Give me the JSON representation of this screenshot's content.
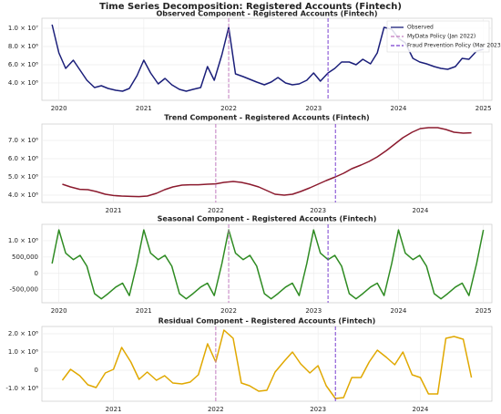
{
  "title": "Time Series Decomposition: Registered Accounts (Fintech)",
  "events": [
    {
      "x": 2022.0,
      "label": "MyData Policy (Jan 2022)",
      "color": "#c27bc0"
    },
    {
      "x": 2023.17,
      "label": "Fraud Prevention Policy (Mar 2023)",
      "color": "#7a3fd0"
    }
  ],
  "chart_data": [
    {
      "type": "line",
      "title": "Observed Component - Registered Accounts (Fintech)",
      "x": [
        2019.92,
        2020,
        2020.08,
        2020.17,
        2020.25,
        2020.33,
        2020.42,
        2020.5,
        2020.58,
        2020.67,
        2020.75,
        2020.83,
        2020.92,
        2021,
        2021.08,
        2021.17,
        2021.25,
        2021.33,
        2021.42,
        2021.5,
        2021.58,
        2021.67,
        2021.75,
        2021.83,
        2021.92,
        2022,
        2022.08,
        2022.17,
        2022.25,
        2022.33,
        2022.42,
        2022.5,
        2022.58,
        2022.67,
        2022.75,
        2022.83,
        2022.92,
        2023,
        2023.08,
        2023.17,
        2023.25,
        2023.33,
        2023.42,
        2023.5,
        2023.58,
        2023.67,
        2023.75,
        2023.83,
        2023.92,
        2024,
        2024.08,
        2024.17,
        2024.25,
        2024.33,
        2024.42,
        2024.5,
        2024.58,
        2024.67,
        2024.75,
        2024.83,
        2024.92,
        2025
      ],
      "series": [
        {
          "name": "Observed",
          "color": "#1b1f7a",
          "values": [
            10400000,
            7300000,
            5600000,
            6500000,
            5400000,
            4300000,
            3500000,
            3700000,
            3400000,
            3200000,
            3100000,
            3400000,
            4800000,
            6500000,
            5100000,
            3900000,
            4500000,
            3800000,
            3300000,
            3100000,
            3300000,
            3500000,
            5800000,
            4300000,
            7100000,
            10100000,
            5000000,
            4700000,
            4400000,
            4100000,
            3800000,
            4100000,
            4600000,
            4000000,
            3800000,
            3900000,
            4300000,
            5100000,
            4200000,
            5100000,
            5600000,
            6300000,
            6300000,
            6000000,
            6600000,
            6100000,
            7300000,
            10100000,
            9900000,
            8900000,
            8400000,
            6700000,
            6300000,
            6100000,
            5800000,
            5600000,
            5500000,
            5800000,
            6700000,
            6600000,
            7500000,
            7700000
          ]
        }
      ],
      "xlim": [
        2019.8,
        2025.1
      ],
      "xticks": [
        2020,
        2021,
        2022,
        2023,
        2024,
        2025
      ],
      "ylim": [
        2100000,
        11100000
      ],
      "yticks": [
        {
          "value": 10000000,
          "label": "1.0 × 10⁷"
        },
        {
          "value": 8000000,
          "label": "8.0 × 10⁶"
        },
        {
          "value": 6000000,
          "label": "6.0 × 10⁶"
        },
        {
          "value": 4000000,
          "label": "4.0 × 10⁶"
        }
      ],
      "grid": true,
      "legend": "upper right"
    },
    {
      "type": "line",
      "title": "Trend Component - Registered Accounts (Fintech)",
      "x": [
        2020.5,
        2020.58,
        2020.67,
        2020.75,
        2020.83,
        2020.92,
        2021,
        2021.08,
        2021.17,
        2021.25,
        2021.33,
        2021.42,
        2021.5,
        2021.58,
        2021.67,
        2021.75,
        2021.83,
        2021.92,
        2022,
        2022.08,
        2022.17,
        2022.25,
        2022.33,
        2022.42,
        2022.5,
        2022.58,
        2022.67,
        2022.75,
        2022.83,
        2022.92,
        2023,
        2023.08,
        2023.17,
        2023.25,
        2023.33,
        2023.42,
        2023.5,
        2023.58,
        2023.67,
        2023.75,
        2023.83,
        2023.92,
        2024,
        2024.08,
        2024.17,
        2024.25,
        2024.33,
        2024.42,
        2024.5
      ],
      "series": [
        {
          "name": "Trend",
          "color": "#8b1a2e",
          "values": [
            4600000,
            4450000,
            4320000,
            4300000,
            4200000,
            4050000,
            3980000,
            3950000,
            3930000,
            3920000,
            3950000,
            4100000,
            4300000,
            4450000,
            4550000,
            4570000,
            4570000,
            4600000,
            4620000,
            4700000,
            4750000,
            4700000,
            4600000,
            4450000,
            4250000,
            4050000,
            4000000,
            4050000,
            4200000,
            4400000,
            4600000,
            4800000,
            5000000,
            5200000,
            5450000,
            5650000,
            5850000,
            6100000,
            6450000,
            6800000,
            7150000,
            7450000,
            7650000,
            7700000,
            7700000,
            7600000,
            7450000,
            7400000,
            7420000
          ]
        }
      ],
      "xlim": [
        2020.3,
        2024.7
      ],
      "xticks": [
        2021,
        2022,
        2023,
        2024
      ],
      "ylim": [
        3600000,
        7900000
      ],
      "yticks": [
        {
          "value": 7000000,
          "label": "7.0 × 10⁶"
        },
        {
          "value": 6000000,
          "label": "6.0 × 10⁶"
        },
        {
          "value": 5000000,
          "label": "5.0 × 10⁶"
        },
        {
          "value": 4000000,
          "label": "4.0 × 10⁶"
        }
      ],
      "grid": true
    },
    {
      "type": "line",
      "title": "Seasonal Component - Registered Accounts (Fintech)",
      "x": [
        2019.92,
        2020,
        2020.08,
        2020.17,
        2020.25,
        2020.33,
        2020.42,
        2020.5,
        2020.58,
        2020.67,
        2020.75,
        2020.83,
        2020.92,
        2021,
        2021.08,
        2021.17,
        2021.25,
        2021.33,
        2021.42,
        2021.5,
        2021.58,
        2021.67,
        2021.75,
        2021.83,
        2021.92,
        2022,
        2022.08,
        2022.17,
        2022.25,
        2022.33,
        2022.42,
        2022.5,
        2022.58,
        2022.67,
        2022.75,
        2022.83,
        2022.92,
        2023,
        2023.08,
        2023.17,
        2023.25,
        2023.33,
        2023.42,
        2023.5,
        2023.58,
        2023.67,
        2023.75,
        2023.83,
        2023.92,
        2024,
        2024.08,
        2024.17,
        2024.25,
        2024.33,
        2024.42,
        2024.5,
        2024.58,
        2024.67,
        2024.75,
        2024.83,
        2024.92,
        2025
      ],
      "series": [
        {
          "name": "Seasonal",
          "color": "#2e8b22",
          "values": [
            300000,
            1330000,
            620000,
            420000,
            550000,
            220000,
            -620000,
            -780000,
            -620000,
            -420000,
            -300000,
            -680000,
            300000,
            1330000,
            620000,
            420000,
            550000,
            220000,
            -620000,
            -780000,
            -620000,
            -420000,
            -300000,
            -680000,
            300000,
            1330000,
            620000,
            420000,
            550000,
            220000,
            -620000,
            -780000,
            -620000,
            -420000,
            -300000,
            -680000,
            300000,
            1330000,
            620000,
            420000,
            550000,
            220000,
            -620000,
            -780000,
            -620000,
            -420000,
            -300000,
            -680000,
            300000,
            1330000,
            620000,
            420000,
            550000,
            220000,
            -620000,
            -780000,
            -620000,
            -420000,
            -300000,
            -680000,
            300000,
            1330000
          ]
        }
      ],
      "xlim": [
        2019.8,
        2025.1
      ],
      "xticks": [
        2020,
        2021,
        2022,
        2023,
        2024,
        2025
      ],
      "ylim": [
        -900000,
        1500000
      ],
      "yticks": [
        {
          "value": 1000000,
          "label": "1.0 × 10⁶"
        },
        {
          "value": 500000,
          "label": "500,000"
        },
        0,
        {
          "value": -500000,
          "label": "-500,000"
        }
      ],
      "grid": true
    },
    {
      "type": "line",
      "title": "Residual Component - Registered Accounts (Fintech)",
      "x": [
        2020.5,
        2020.58,
        2020.67,
        2020.75,
        2020.83,
        2020.92,
        2021,
        2021.08,
        2021.17,
        2021.25,
        2021.33,
        2021.42,
        2021.5,
        2021.58,
        2021.67,
        2021.75,
        2021.83,
        2021.92,
        2022,
        2022.08,
        2022.17,
        2022.25,
        2022.33,
        2022.42,
        2022.5,
        2022.58,
        2022.67,
        2022.75,
        2022.83,
        2022.92,
        2023,
        2023.08,
        2023.17,
        2023.25,
        2023.33,
        2023.42,
        2023.5,
        2023.58,
        2023.67,
        2023.75,
        2023.83,
        2023.92,
        2024,
        2024.08,
        2024.17,
        2024.25,
        2024.33,
        2024.42,
        2024.5
      ],
      "series": [
        {
          "name": "Residual",
          "color": "#e0a800",
          "values": [
            -550000,
            50000,
            -300000,
            -800000,
            -950000,
            -150000,
            50000,
            1250000,
            450000,
            -500000,
            -100000,
            -550000,
            -300000,
            -700000,
            -750000,
            -650000,
            -250000,
            1450000,
            450000,
            2200000,
            1750000,
            -700000,
            -850000,
            -1150000,
            -1100000,
            -100000,
            500000,
            1000000,
            350000,
            -150000,
            250000,
            -850000,
            -1550000,
            -1500000,
            -400000,
            -400000,
            450000,
            1100000,
            700000,
            300000,
            1000000,
            -250000,
            -400000,
            -1300000,
            -1300000,
            1750000,
            1850000,
            1700000,
            -400000
          ]
        }
      ],
      "xlim": [
        2020.3,
        2024.7
      ],
      "xticks": [
        2021,
        2022,
        2023,
        2024
      ],
      "ylim": [
        -1700000,
        2400000
      ],
      "yticks": [
        {
          "value": 2000000,
          "label": "2.0 × 10⁶"
        },
        {
          "value": 1000000,
          "label": "1.0 × 10⁶"
        },
        0,
        {
          "value": -1000000,
          "label": "-1.0 × 10⁶"
        }
      ],
      "grid": true
    }
  ]
}
